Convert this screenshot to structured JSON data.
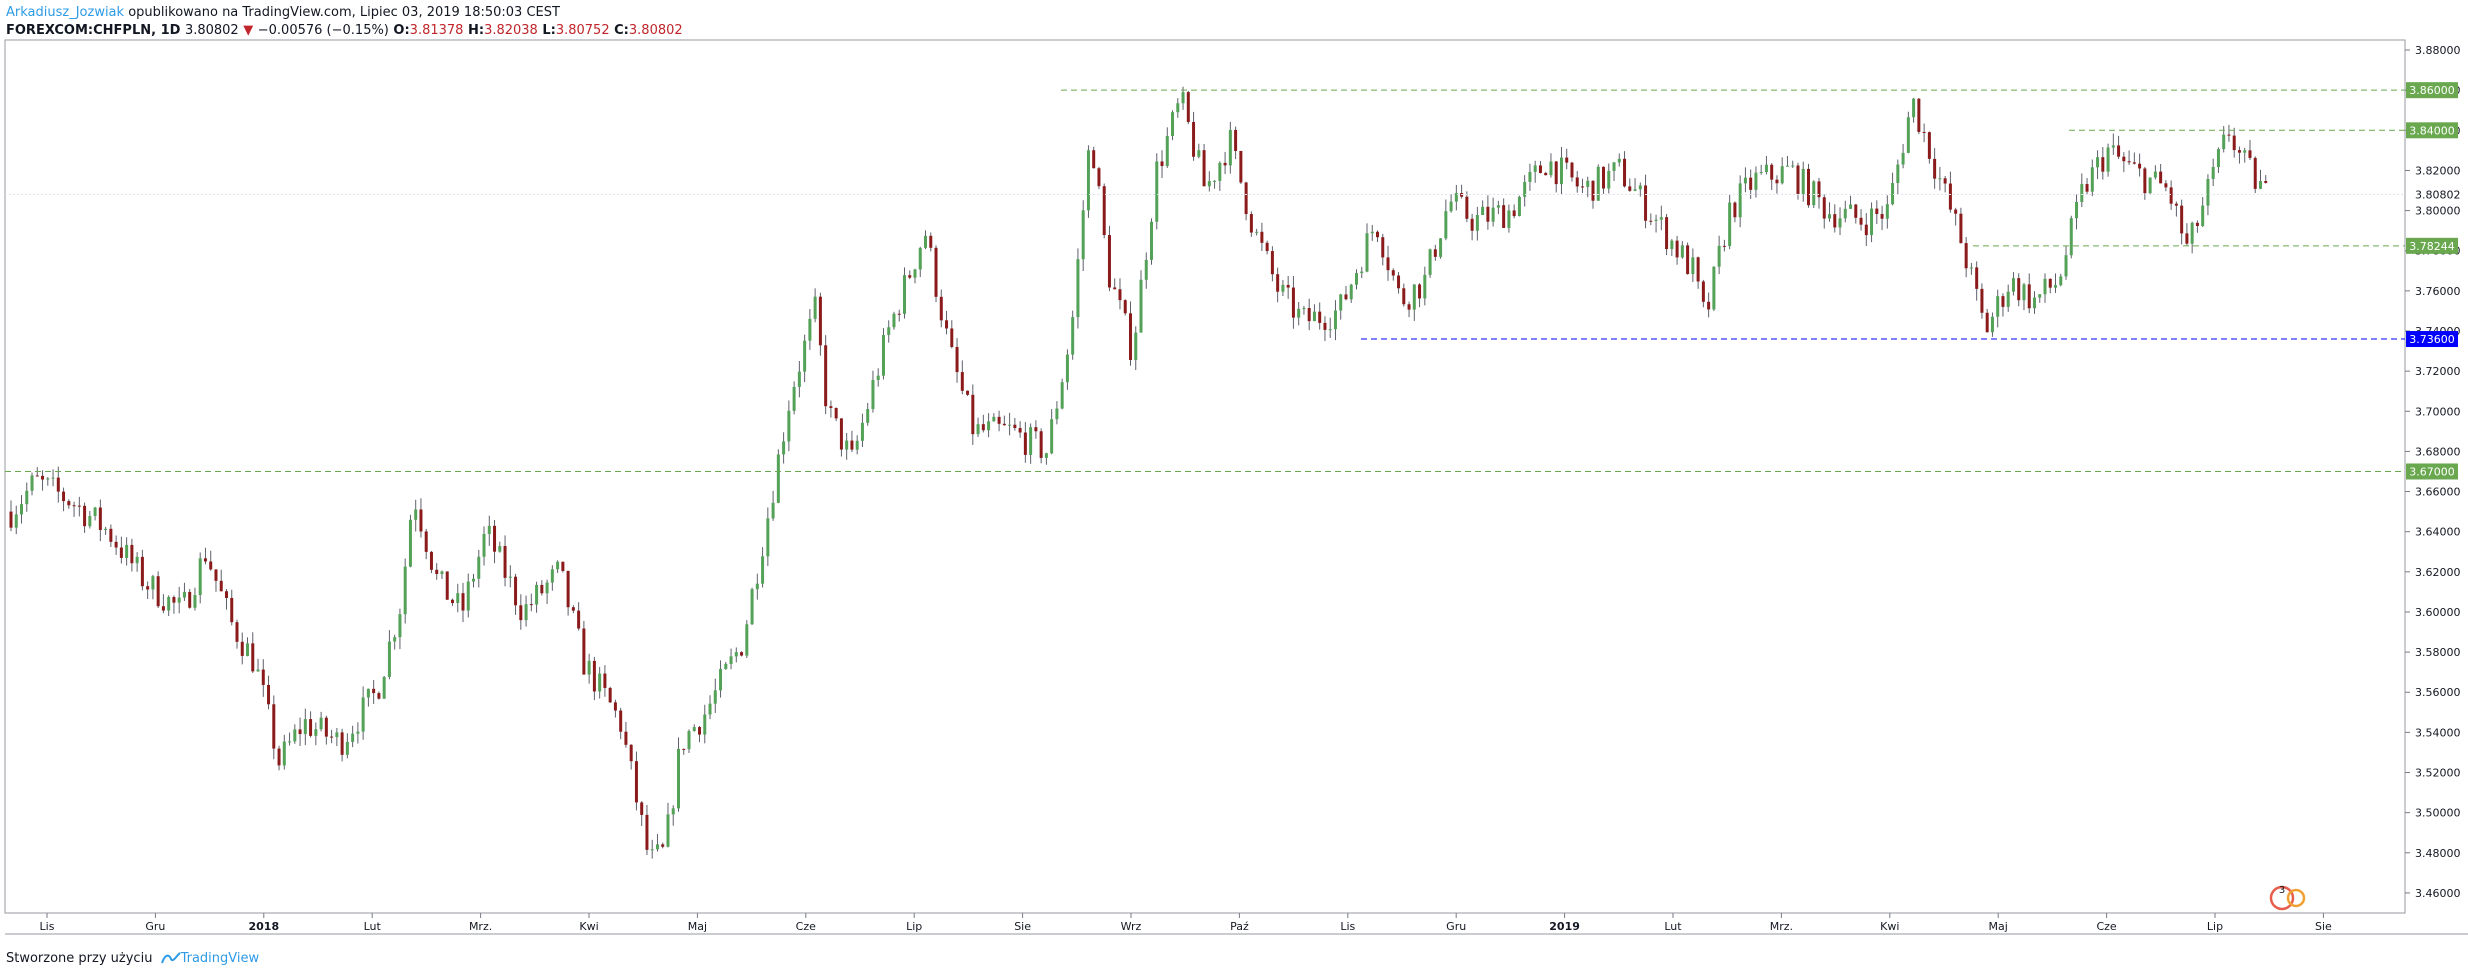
{
  "header": {
    "author": "Arkadiusz_Jozwiak",
    "published_text": "opublikowano na TradingView.com, Lipiec 03, 2019 18:50:03 CEST",
    "symbol": "FOREXCOM:CHFPLN, 1D",
    "last": "3.80802",
    "change": "−0.00576 (−0.15%)",
    "o_label": "O:",
    "o": "3.81378",
    "h_label": "H:",
    "h": "3.82038",
    "l_label": "L:",
    "l": "3.80752",
    "c_label": "C:",
    "c": "3.80802"
  },
  "footer": {
    "created_text": "Stworzone przy użyciu",
    "brand": "TradingView"
  },
  "colors": {
    "up": "#26a69a",
    "up_body": "#53a257",
    "down": "#8b1a1a",
    "wick": "#555555",
    "green_level": "#69a84f",
    "blue_level": "#0000ff",
    "grid": "#e0e3eb"
  },
  "chart_data": {
    "type": "candlestick",
    "symbol": "FOREXCOM:CHFPLN",
    "interval": "1D",
    "ylim": [
      3.45,
      3.885
    ],
    "y_ticks": [
      "3.88000",
      "3.86000",
      "3.84000",
      "3.82000",
      "3.80000",
      "3.78000",
      "3.76000",
      "3.74000",
      "3.72000",
      "3.70000",
      "3.68000",
      "3.66000",
      "3.64000",
      "3.62000",
      "3.60000",
      "3.58000",
      "3.56000",
      "3.54000",
      "3.52000",
      "3.50000",
      "3.48000",
      "3.46000"
    ],
    "x_ticks": [
      "Lis",
      "Gru",
      "2018",
      "Lut",
      "Mrz.",
      "Kwi",
      "Maj",
      "Cze",
      "Lip",
      "Sie",
      "Wrz",
      "Paź",
      "Lis",
      "Gru",
      "2019",
      "Lut",
      "Mrz.",
      "Kwi",
      "Maj",
      "Cze",
      "Lip",
      "Sie"
    ],
    "x_tick_bold": [
      false,
      false,
      true,
      false,
      false,
      false,
      false,
      false,
      false,
      false,
      false,
      false,
      false,
      false,
      true,
      false,
      false,
      false,
      false,
      false,
      false,
      false
    ],
    "last_price": "3.80802",
    "levels": [
      {
        "value": 3.86,
        "label": "3.86000",
        "style": "dashed",
        "color": "green",
        "from": 0.44
      },
      {
        "value": 3.84,
        "label": "3.84000",
        "style": "dashed",
        "color": "green",
        "from": 0.86
      },
      {
        "value": 3.78244,
        "label": "3.78244",
        "style": "dashed",
        "color": "green",
        "from": 0.82
      },
      {
        "value": 3.736,
        "label": "3.73600",
        "style": "dashed",
        "color": "blue",
        "from": 0.565
      },
      {
        "value": 3.67,
        "label": "3.67000",
        "style": "dashed",
        "color": "green",
        "from": 0.0
      }
    ],
    "path": [
      [
        0,
        3.65
      ],
      [
        0.01,
        3.665
      ],
      [
        0.025,
        3.655
      ],
      [
        0.04,
        3.64
      ],
      [
        0.055,
        3.615
      ],
      [
        0.07,
        3.6
      ],
      [
        0.08,
        3.63
      ],
      [
        0.09,
        3.595
      ],
      [
        0.1,
        3.575
      ],
      [
        0.11,
        3.525
      ],
      [
        0.12,
        3.545
      ],
      [
        0.135,
        3.535
      ],
      [
        0.15,
        3.56
      ],
      [
        0.16,
        3.605
      ],
      [
        0.165,
        3.66
      ],
      [
        0.175,
        3.615
      ],
      [
        0.185,
        3.6
      ],
      [
        0.195,
        3.64
      ],
      [
        0.21,
        3.6
      ],
      [
        0.225,
        3.62
      ],
      [
        0.235,
        3.575
      ],
      [
        0.25,
        3.545
      ],
      [
        0.262,
        3.475
      ],
      [
        0.268,
        3.48
      ],
      [
        0.275,
        3.535
      ],
      [
        0.285,
        3.55
      ],
      [
        0.3,
        3.585
      ],
      [
        0.31,
        3.645
      ],
      [
        0.32,
        3.71
      ],
      [
        0.33,
        3.75
      ],
      [
        0.335,
        3.7
      ],
      [
        0.345,
        3.675
      ],
      [
        0.36,
        3.74
      ],
      [
        0.375,
        3.79
      ],
      [
        0.385,
        3.73
      ],
      [
        0.395,
        3.69
      ],
      [
        0.41,
        3.69
      ],
      [
        0.425,
        3.68
      ],
      [
        0.435,
        3.74
      ],
      [
        0.443,
        3.84
      ],
      [
        0.45,
        3.77
      ],
      [
        0.46,
        3.73
      ],
      [
        0.47,
        3.82
      ],
      [
        0.48,
        3.855
      ],
      [
        0.49,
        3.81
      ],
      [
        0.5,
        3.835
      ],
      [
        0.51,
        3.79
      ],
      [
        0.52,
        3.76
      ],
      [
        0.53,
        3.745
      ],
      [
        0.545,
        3.75
      ],
      [
        0.56,
        3.795
      ],
      [
        0.57,
        3.755
      ],
      [
        0.58,
        3.765
      ],
      [
        0.59,
        3.805
      ],
      [
        0.6,
        3.795
      ],
      [
        0.615,
        3.8
      ],
      [
        0.63,
        3.825
      ],
      [
        0.645,
        3.81
      ],
      [
        0.66,
        3.82
      ],
      [
        0.675,
        3.795
      ],
      [
        0.69,
        3.77
      ],
      [
        0.695,
        3.745
      ],
      [
        0.705,
        3.8
      ],
      [
        0.715,
        3.815
      ],
      [
        0.73,
        3.82
      ],
      [
        0.745,
        3.8
      ],
      [
        0.76,
        3.795
      ],
      [
        0.77,
        3.8
      ],
      [
        0.78,
        3.855
      ],
      [
        0.79,
        3.82
      ],
      [
        0.8,
        3.785
      ],
      [
        0.81,
        3.74
      ],
      [
        0.82,
        3.765
      ],
      [
        0.83,
        3.755
      ],
      [
        0.84,
        3.765
      ],
      [
        0.85,
        3.81
      ],
      [
        0.86,
        3.83
      ],
      [
        0.87,
        3.82
      ],
      [
        0.885,
        3.81
      ],
      [
        0.893,
        3.78
      ],
      [
        0.9,
        3.805
      ],
      [
        0.91,
        3.84
      ],
      [
        0.915,
        3.825
      ],
      [
        0.925,
        3.808
      ]
    ]
  }
}
